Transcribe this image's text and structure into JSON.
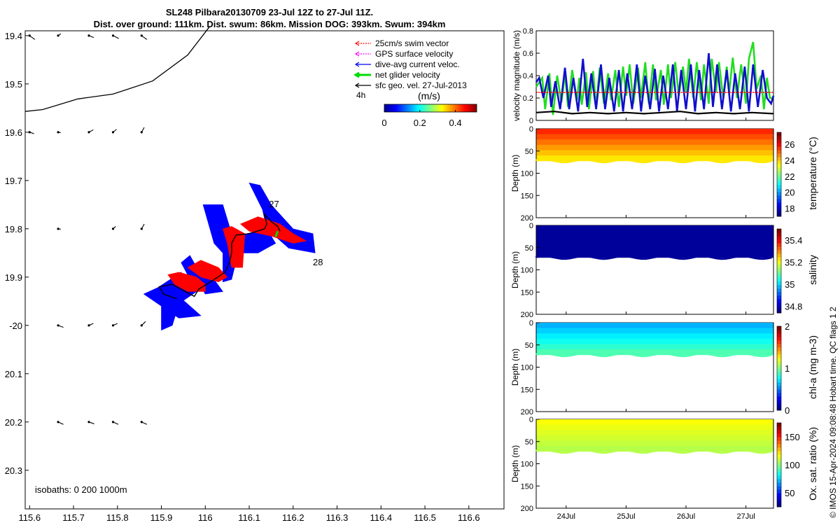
{
  "titles": {
    "line1": "SL248 Pilbara20130709 23-Jul 12Z to 27-Jul 11Z.",
    "line2": "Dist. over ground: 111km. Dist. swum: 86km. Mission DOG: 393km. Swum: 394km"
  },
  "credit": "© IMOS 15-Apr-2024 09:08:48 Hobart time. QC flags 1  2",
  "colors": {
    "swim": "#ff0000",
    "gps": "#ff00ff",
    "dive_avg": "#0000ff",
    "net": "#00dd00",
    "sfc_geo": "#000000",
    "vel_green": "#22dd22",
    "vel_blue": "#1010cc"
  },
  "chart_data": [
    {
      "id": "map",
      "type": "scatter",
      "xlabel": "",
      "ylabel": "",
      "xlim": [
        115.59,
        116.68
      ],
      "ylim": [
        19.39,
        20.38
      ],
      "x_tick_labels": [
        "115.6",
        "115.7",
        "115.8",
        "115.9",
        "116",
        "116.1",
        "116.2",
        "116.3",
        "116.4",
        "116.5",
        "116.6"
      ],
      "x_ticks": [
        115.6,
        115.7,
        115.8,
        115.9,
        116.0,
        116.1,
        116.2,
        116.3,
        116.4,
        116.5,
        116.6
      ],
      "y_tick_labels": [
        "19.4",
        "19.5",
        "19.6",
        "19.7",
        "19.8",
        "19.9",
        "-20",
        "20.1",
        "20.2",
        "20.3"
      ],
      "y_ticks": [
        19.4,
        19.5,
        19.6,
        19.7,
        19.8,
        19.9,
        20.0,
        20.1,
        20.2,
        20.3
      ],
      "legend": [
        {
          "label": "25cm/s swim vector",
          "color_key": "swim",
          "style": "dotted"
        },
        {
          "label": "GPS surface velocity",
          "color_key": "gps",
          "style": "dotted"
        },
        {
          "label": "dive-avg current veloc.",
          "color_key": "dive_avg",
          "style": "solid"
        },
        {
          "label": "net glider velocity",
          "color_key": "net",
          "style": "thick"
        },
        {
          "label": "sfc geo. vel. 27-Jul-2013",
          "color_key": "sfc_geo",
          "style": "solid"
        }
      ],
      "legend_position": "top-right",
      "legend_extra": "4h",
      "colorbar": {
        "label": "(m/s)",
        "tick_labels": [
          "0",
          "0.2",
          "0.4"
        ],
        "ticks": [
          0,
          0.2,
          0.4
        ],
        "range": [
          0,
          0.52
        ]
      },
      "isobaths_label": "isobaths: 0   200  1000m",
      "day_labels": [
        {
          "text": "27",
          "lon": 116.145,
          "lat": 19.748
        },
        {
          "text": "28",
          "lon": 116.245,
          "lat": 19.868
        }
      ],
      "coastline": [
        [
          115.59,
          19.557
        ],
        [
          115.63,
          19.553
        ],
        [
          115.71,
          19.531
        ],
        [
          115.79,
          19.521
        ],
        [
          115.88,
          19.494
        ],
        [
          115.96,
          19.44
        ],
        [
          116.01,
          19.381
        ]
      ],
      "glider_track": [
        [
          115.935,
          19.945
        ],
        [
          115.905,
          19.935
        ],
        [
          115.895,
          19.92
        ],
        [
          115.925,
          19.915
        ],
        [
          115.955,
          19.93
        ],
        [
          115.975,
          19.94
        ],
        [
          115.985,
          19.925
        ],
        [
          116.02,
          19.905
        ],
        [
          116.045,
          19.89
        ],
        [
          116.055,
          19.87
        ],
        [
          116.06,
          19.85
        ],
        [
          116.06,
          19.83
        ],
        [
          116.07,
          19.813
        ],
        [
          116.1,
          19.81
        ],
        [
          116.135,
          19.8
        ],
        [
          116.14,
          19.79
        ],
        [
          116.135,
          19.77
        ],
        [
          116.15,
          19.785
        ],
        [
          116.165,
          19.795
        ],
        [
          116.17,
          19.805
        ]
      ],
      "dive_avg_polygons": [
        [
          [
            115.86,
            19.935
          ],
          [
            115.92,
            19.91
          ],
          [
            115.94,
            19.94
          ],
          [
            115.99,
            19.98
          ],
          [
            115.94,
            19.985
          ],
          [
            115.9,
            19.96
          ]
        ],
        [
          [
            115.895,
            19.92
          ],
          [
            115.945,
            19.89
          ],
          [
            115.98,
            19.93
          ],
          [
            115.94,
            19.955
          ]
        ],
        [
          [
            115.9,
            19.96
          ],
          [
            115.94,
            19.955
          ],
          [
            115.925,
            20.0
          ],
          [
            115.9,
            20.01
          ]
        ],
        [
          [
            115.945,
            19.87
          ],
          [
            115.965,
            19.855
          ],
          [
            116.005,
            19.92
          ],
          [
            115.98,
            19.93
          ]
        ],
        [
          [
            115.975,
            19.9
          ],
          [
            116.02,
            19.905
          ],
          [
            116.04,
            19.93
          ],
          [
            116.0,
            19.935
          ]
        ],
        [
          [
            115.995,
            19.75
          ],
          [
            116.04,
            19.75
          ],
          [
            116.06,
            19.81
          ],
          [
            116.08,
            19.83
          ],
          [
            116.06,
            19.905
          ],
          [
            116.04,
            19.91
          ],
          [
            116.04,
            19.85
          ],
          [
            116.02,
            19.83
          ]
        ],
        [
          [
            116.05,
            19.82
          ],
          [
            116.14,
            19.8
          ],
          [
            116.16,
            19.83
          ],
          [
            116.12,
            19.85
          ],
          [
            116.06,
            19.85
          ]
        ],
        [
          [
            116.1,
            19.705
          ],
          [
            116.125,
            19.71
          ],
          [
            116.15,
            19.75
          ],
          [
            116.2,
            19.8
          ],
          [
            116.245,
            19.81
          ],
          [
            116.25,
            19.85
          ],
          [
            116.19,
            19.84
          ],
          [
            116.14,
            19.8
          ],
          [
            116.13,
            19.76
          ]
        ]
      ],
      "swim_polygons": [
        [
          [
            115.915,
            19.895
          ],
          [
            115.94,
            19.89
          ],
          [
            115.98,
            19.9
          ],
          [
            116.0,
            19.915
          ],
          [
            116.0,
            19.93
          ],
          [
            115.96,
            19.93
          ],
          [
            115.93,
            19.915
          ]
        ],
        [
          [
            115.96,
            19.88
          ],
          [
            115.99,
            19.865
          ],
          [
            116.03,
            19.88
          ],
          [
            116.05,
            19.9
          ],
          [
            116.03,
            19.91
          ],
          [
            115.99,
            19.9
          ]
        ],
        [
          [
            116.04,
            19.8
          ],
          [
            116.06,
            19.795
          ],
          [
            116.09,
            19.81
          ],
          [
            116.085,
            19.88
          ],
          [
            116.06,
            19.88
          ],
          [
            116.05,
            19.83
          ]
        ],
        [
          [
            116.08,
            19.79
          ],
          [
            116.12,
            19.775
          ],
          [
            116.17,
            19.79
          ],
          [
            116.2,
            19.81
          ],
          [
            116.23,
            19.825
          ],
          [
            116.2,
            19.83
          ],
          [
            116.15,
            19.815
          ],
          [
            116.1,
            19.805
          ]
        ]
      ],
      "sfc_geo_arrows": [
        [
          115.6,
          19.4,
          0.012,
          0.008
        ],
        [
          115.665,
          19.4,
          0.006,
          -0.004
        ],
        [
          115.735,
          19.4,
          0.011,
          0.004
        ],
        [
          115.79,
          19.4,
          0.013,
          0.006
        ],
        [
          115.855,
          19.4,
          0.012,
          0.008
        ],
        [
          115.6,
          19.6,
          0.01,
          0.003
        ],
        [
          115.665,
          19.6,
          0.006,
          0.001
        ],
        [
          115.735,
          19.6,
          0.01,
          -0.005
        ],
        [
          115.79,
          19.6,
          0.008,
          -0.006
        ],
        [
          115.855,
          19.6,
          0.006,
          -0.01
        ],
        [
          115.665,
          19.8,
          0.006,
          0.001
        ],
        [
          115.79,
          19.8,
          0.006,
          -0.005
        ],
        [
          115.855,
          19.8,
          0.006,
          -0.01
        ],
        [
          115.665,
          20.0,
          0.012,
          0.004
        ],
        [
          115.735,
          20.0,
          0.01,
          -0.004
        ],
        [
          115.79,
          20.0,
          0.01,
          -0.004
        ],
        [
          115.855,
          20.0,
          0.009,
          -0.008
        ],
        [
          115.665,
          20.2,
          0.012,
          0.005
        ],
        [
          115.735,
          20.2,
          0.012,
          0.004
        ],
        [
          115.79,
          20.2,
          0.012,
          0.005
        ],
        [
          115.855,
          20.2,
          0.012,
          0.005
        ]
      ]
    },
    {
      "id": "velocity",
      "type": "line",
      "ylabel": "velocity magnitude (m/s)",
      "xlim": [
        23.5,
        27.46
      ],
      "ylim": [
        0,
        0.8
      ],
      "y_tick_labels": [
        "0",
        "0.2",
        "0.4",
        "0.6",
        "0.8"
      ],
      "y_ticks": [
        0,
        0.2,
        0.4,
        0.6,
        0.8
      ],
      "series": [
        {
          "color_key": "vel_green",
          "x": [
            23.5,
            23.6,
            23.65,
            23.72,
            23.78,
            23.85,
            23.92,
            23.98,
            24.03,
            24.1,
            24.18,
            24.22,
            24.26,
            24.33,
            24.38,
            24.45,
            24.5,
            24.56,
            24.63,
            24.7,
            24.75,
            24.82,
            24.88,
            24.95,
            25.0,
            25.06,
            25.12,
            25.2,
            25.25,
            25.32,
            25.38,
            25.45,
            25.5,
            25.58,
            25.63,
            25.7,
            25.75,
            25.82,
            25.88,
            25.95,
            26.0,
            26.05,
            26.12,
            26.18,
            26.25,
            26.3,
            26.38,
            26.43,
            26.5,
            26.55,
            26.62,
            26.68,
            26.72,
            26.78,
            26.85,
            26.92,
            27.0,
            27.05,
            27.12,
            27.18,
            27.25,
            27.3,
            27.35,
            27.4,
            27.46
          ],
          "values": [
            0.3,
            0.38,
            0.1,
            0.42,
            0.05,
            0.4,
            0.16,
            0.42,
            0.12,
            0.45,
            0.18,
            0.38,
            0.14,
            0.43,
            0.1,
            0.44,
            0.12,
            0.47,
            0.15,
            0.42,
            0.18,
            0.45,
            0.12,
            0.48,
            0.22,
            0.5,
            0.15,
            0.47,
            0.2,
            0.52,
            0.15,
            0.5,
            0.18,
            0.45,
            0.14,
            0.5,
            0.2,
            0.52,
            0.22,
            0.48,
            0.25,
            0.55,
            0.2,
            0.52,
            0.18,
            0.5,
            0.15,
            0.55,
            0.25,
            0.52,
            0.2,
            0.48,
            0.25,
            0.56,
            0.2,
            0.5,
            0.15,
            0.55,
            0.7,
            0.28,
            0.4,
            0.1,
            0.38,
            0.2,
            0.2
          ]
        },
        {
          "color_key": "vel_blue",
          "x": [
            23.5,
            23.55,
            23.62,
            23.7,
            23.75,
            23.82,
            23.9,
            23.98,
            24.05,
            24.12,
            24.2,
            24.28,
            24.35,
            24.42,
            24.5,
            24.58,
            24.65,
            24.72,
            24.8,
            24.88,
            24.95,
            25.02,
            25.1,
            25.18,
            25.25,
            25.32,
            25.4,
            25.48,
            25.55,
            25.62,
            25.7,
            25.78,
            25.85,
            25.92,
            26.0,
            26.08,
            26.15,
            26.22,
            26.3,
            26.38,
            26.45,
            26.52,
            26.6,
            26.68,
            26.75,
            26.82,
            26.9,
            26.98,
            27.05,
            27.12,
            27.2,
            27.28,
            27.35,
            27.42,
            27.46
          ],
          "values": [
            0.34,
            0.38,
            0.2,
            0.4,
            0.12,
            0.35,
            0.1,
            0.47,
            0.1,
            0.38,
            0.08,
            0.55,
            0.12,
            0.42,
            0.1,
            0.5,
            0.1,
            0.38,
            0.08,
            0.45,
            0.08,
            0.42,
            0.1,
            0.5,
            0.08,
            0.4,
            0.1,
            0.46,
            0.08,
            0.4,
            0.1,
            0.5,
            0.08,
            0.45,
            0.1,
            0.5,
            0.08,
            0.45,
            0.1,
            0.6,
            0.12,
            0.5,
            0.1,
            0.45,
            0.08,
            0.42,
            0.1,
            0.48,
            0.08,
            0.5,
            0.12,
            0.45,
            0.2,
            0.15,
            0.22
          ]
        },
        {
          "color_key": "swim",
          "x": [
            23.5,
            27.46
          ],
          "values": [
            0.25,
            0.25
          ]
        },
        {
          "color_key": "sfc_geo",
          "x": [
            23.5,
            23.8,
            24.1,
            24.4,
            24.7,
            25.0,
            25.3,
            25.6,
            25.9,
            26.2,
            26.5,
            26.8,
            27.1,
            27.46
          ],
          "values": [
            0.07,
            0.08,
            0.06,
            0.07,
            0.06,
            0.07,
            0.06,
            0.07,
            0.08,
            0.06,
            0.07,
            0.06,
            0.07,
            0.06
          ]
        }
      ]
    },
    {
      "id": "temperature",
      "type": "heatmap",
      "ylabel": "Depth (m)",
      "colorbar_label": "temperature (°C)",
      "ylim": [
        0,
        200
      ],
      "y_tick_labels": [
        "0",
        "50",
        "100",
        "150",
        "200"
      ],
      "y_ticks": [
        0,
        50,
        100,
        150,
        200
      ],
      "clim": [
        17,
        27.5
      ],
      "cb_tick_labels": [
        "18",
        "20",
        "22",
        "24",
        "26"
      ],
      "cb_ticks": [
        18,
        20,
        22,
        24,
        26
      ],
      "max_depth": 72,
      "surface_value": 25.8,
      "bottom_value": 23.8
    },
    {
      "id": "salinity",
      "type": "heatmap",
      "ylabel": "Depth (m)",
      "colorbar_label": "salinity",
      "ylim": [
        0,
        200
      ],
      "y_tick_labels": [
        "0",
        "50",
        "100",
        "150",
        "200"
      ],
      "y_ticks": [
        0,
        50,
        100,
        150,
        200
      ],
      "clim": [
        34.74,
        35.5
      ],
      "cb_tick_labels": [
        "34.8",
        "35",
        "35.2",
        "35.4"
      ],
      "cb_ticks": [
        34.8,
        35.0,
        35.2,
        35.4
      ],
      "max_depth": 72,
      "surface_value": 34.76,
      "bottom_value": 34.76
    },
    {
      "id": "chla",
      "type": "heatmap",
      "ylabel": "Depth (m)",
      "colorbar_label": "chl-a (mg m-3)",
      "ylim": [
        0,
        200
      ],
      "y_tick_labels": [
        "0",
        "50",
        "100",
        "150",
        "200"
      ],
      "y_ticks": [
        0,
        50,
        100,
        150,
        200
      ],
      "clim": [
        0,
        2
      ],
      "cb_tick_labels": [
        "0",
        "1",
        "2"
      ],
      "cb_ticks": [
        0,
        1,
        2
      ],
      "max_depth": 72,
      "surface_value": 0.6,
      "bottom_value": 0.9
    },
    {
      "id": "oxygen",
      "type": "heatmap",
      "ylabel": "Depth (m)",
      "colorbar_label": "Ox. sat. ratio (%)",
      "ylim": [
        0,
        200
      ],
      "y_tick_labels": [
        "0",
        "50",
        "100",
        "150",
        "200"
      ],
      "y_ticks": [
        0,
        50,
        100,
        150,
        200
      ],
      "clim": [
        25,
        175
      ],
      "cb_tick_labels": [
        "50",
        "100",
        "150"
      ],
      "cb_ticks": [
        50,
        100,
        150
      ],
      "max_depth": 72,
      "surface_value": 118,
      "bottom_value": 108
    }
  ],
  "time_axis": {
    "tick_labels": [
      "24Jul",
      "25Jul",
      "26Jul",
      "27Jul"
    ],
    "ticks": [
      24,
      25,
      26,
      27
    ]
  }
}
